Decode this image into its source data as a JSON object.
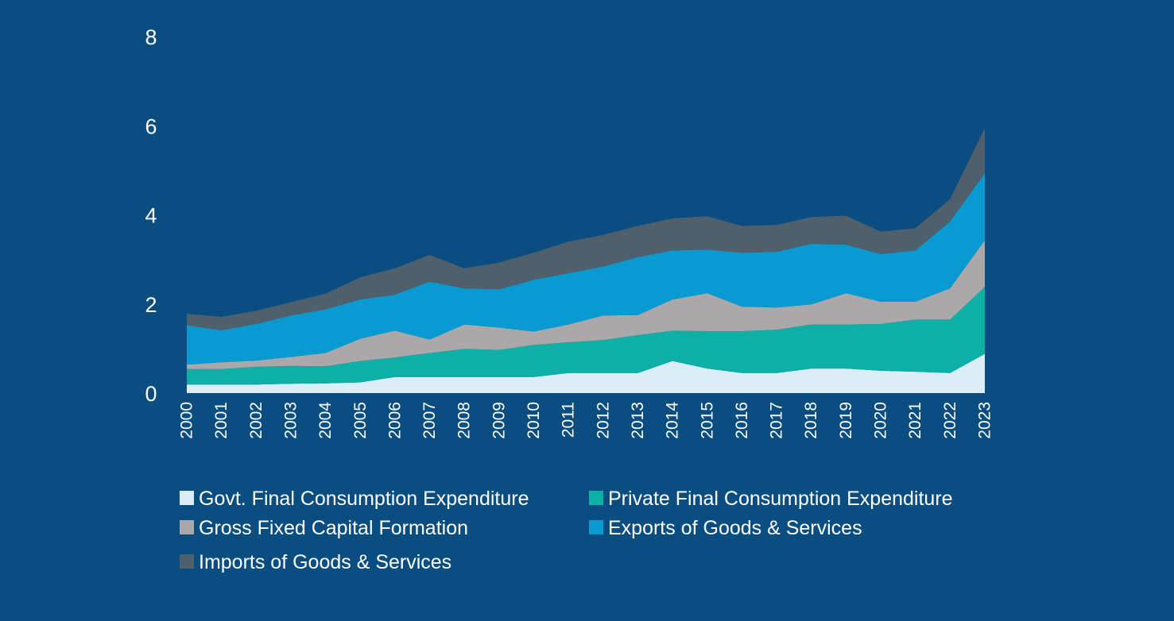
{
  "chart_data": {
    "type": "area",
    "stacked": true,
    "title": "",
    "xlabel": "",
    "ylabel": "",
    "ylim": [
      0,
      8
    ],
    "yticks": [
      0,
      2,
      4,
      6,
      8
    ],
    "grid": false,
    "legend_position": "bottom",
    "categories": [
      "2000",
      "2001",
      "2002",
      "2003",
      "2004",
      "2005",
      "2006",
      "2007",
      "2008",
      "2009",
      "2010",
      "2011",
      "2012",
      "2013",
      "2014",
      "2015",
      "2016",
      "2017",
      "2018",
      "2019",
      "2020",
      "2021",
      "2022",
      "2023"
    ],
    "series": [
      {
        "name": "Govt. Final Consumption Expenditure",
        "color": "#dbeef8",
        "values": [
          0.19,
          0.19,
          0.19,
          0.21,
          0.22,
          0.24,
          0.36,
          0.36,
          0.36,
          0.36,
          0.36,
          0.45,
          0.45,
          0.45,
          0.72,
          0.55,
          0.45,
          0.45,
          0.55,
          0.55,
          0.5,
          0.48,
          0.45,
          0.88
        ]
      },
      {
        "name": "Private Final Consumption Expenditure",
        "color": "#0eafa6",
        "values": [
          0.35,
          0.35,
          0.4,
          0.4,
          0.38,
          0.48,
          0.44,
          0.54,
          0.63,
          0.61,
          0.72,
          0.69,
          0.74,
          0.85,
          0.68,
          0.84,
          0.94,
          0.97,
          0.99,
          0.99,
          1.05,
          1.17,
          1.2,
          1.5
        ]
      },
      {
        "name": "Gross Fixed Capital Formation",
        "color": "#aaa8a8",
        "values": [
          0.1,
          0.15,
          0.14,
          0.2,
          0.3,
          0.5,
          0.6,
          0.3,
          0.55,
          0.5,
          0.3,
          0.4,
          0.55,
          0.45,
          0.7,
          0.85,
          0.55,
          0.5,
          0.45,
          0.7,
          0.5,
          0.4,
          0.7,
          1.05
        ]
      },
      {
        "name": "Exports of Goods & Services",
        "color": "#0a9ad2",
        "values": [
          0.88,
          0.72,
          0.82,
          0.93,
          0.98,
          0.88,
          0.81,
          1.3,
          0.81,
          0.86,
          1.16,
          1.15,
          1.1,
          1.3,
          1.1,
          0.98,
          1.21,
          1.25,
          1.36,
          1.09,
          1.07,
          1.15,
          1.5,
          1.5
        ]
      },
      {
        "name": "Imports of Goods & Services",
        "color": "#4f5f6b",
        "values": [
          0.26,
          0.3,
          0.3,
          0.3,
          0.35,
          0.5,
          0.59,
          0.6,
          0.45,
          0.6,
          0.61,
          0.71,
          0.71,
          0.7,
          0.72,
          0.75,
          0.6,
          0.6,
          0.6,
          0.65,
          0.5,
          0.5,
          0.5,
          1.02
        ]
      }
    ]
  }
}
